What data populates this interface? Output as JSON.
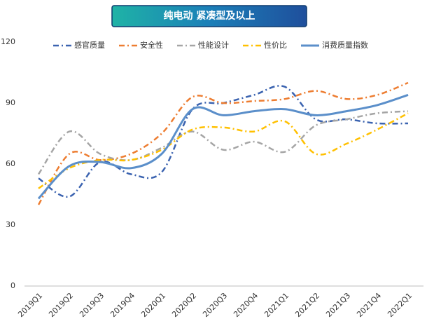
{
  "chart_data": {
    "type": "line",
    "title": "纯电动 紧凑型及以上",
    "categories": [
      "2019Q1",
      "2019Q2",
      "2019Q3",
      "2019Q4",
      "2020Q1",
      "2020Q2",
      "2020Q3",
      "2020Q4",
      "2021Q1",
      "2021Q2",
      "2021Q3",
      "2021Q4",
      "2022Q1"
    ],
    "series": [
      {
        "name": "感官质量",
        "color": "#3b63b0",
        "dash": "dash-dot",
        "values": [
          53,
          44,
          61,
          55,
          56,
          87,
          90,
          94,
          98,
          82,
          82,
          80,
          80
        ]
      },
      {
        "name": "安全性",
        "color": "#ed7d31",
        "dash": "dash-dot",
        "values": [
          40,
          65,
          62,
          65,
          75,
          93,
          90,
          91,
          92,
          96,
          92,
          94,
          100
        ]
      },
      {
        "name": "性能设计",
        "color": "#a5a5a5",
        "dash": "dash-dot",
        "values": [
          55,
          76,
          65,
          62,
          68,
          76,
          67,
          71,
          66,
          79,
          82,
          85,
          86
        ]
      },
      {
        "name": "性价比",
        "color": "#ffc000",
        "dash": "dash-dot",
        "values": [
          48,
          58,
          62,
          62,
          67,
          77,
          78,
          76,
          81,
          65,
          70,
          77,
          85
        ]
      },
      {
        "name": "消费质量指数",
        "color": "#5b8fca",
        "dash": "solid",
        "values": [
          43,
          59,
          61,
          58,
          65,
          87,
          84,
          86,
          87,
          84,
          86,
          89,
          94
        ]
      }
    ],
    "ylim": [
      0,
      120
    ],
    "yticks": [
      0,
      30,
      60,
      90,
      120
    ],
    "grid": false,
    "smooth": true,
    "legend": "top"
  }
}
